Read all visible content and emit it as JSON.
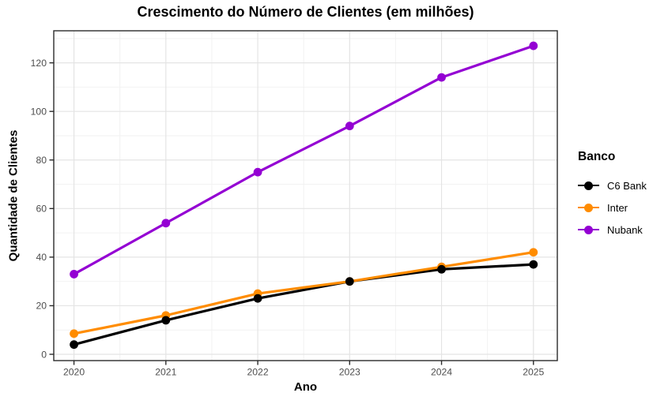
{
  "chart_data": {
    "type": "line",
    "title": "Crescimento do Número de Clientes (em milhões)",
    "xlabel": "Ano",
    "ylabel": "Quantidade de Clientes",
    "legend_title": "Banco",
    "legend_position": "right",
    "grid": true,
    "x": [
      2020,
      2021,
      2022,
      2023,
      2024,
      2025
    ],
    "series": [
      {
        "name": "C6 Bank",
        "color": "#000000",
        "values": [
          4,
          14,
          23,
          30,
          35,
          37
        ]
      },
      {
        "name": "Inter",
        "color": "#FF8C00",
        "values": [
          8.5,
          16,
          25,
          30,
          36,
          42
        ]
      },
      {
        "name": "Nubank",
        "color": "#9400D3",
        "values": [
          33,
          54,
          75,
          94,
          114,
          127
        ]
      }
    ],
    "y_ticks": [
      0,
      20,
      40,
      60,
      80,
      100,
      120
    ],
    "x_ticks": [
      2020,
      2021,
      2022,
      2023,
      2024,
      2025
    ],
    "ylim": [
      -2.6,
      133.2
    ],
    "xlim": [
      2019.78,
      2025.26
    ],
    "colors": {
      "grid_major": "#E4E4E4",
      "grid_minor": "#F2F2F2",
      "panel_border": "#2B2B2B",
      "tick_label": "#4D4D4D",
      "background": "#FFFFFF"
    }
  }
}
